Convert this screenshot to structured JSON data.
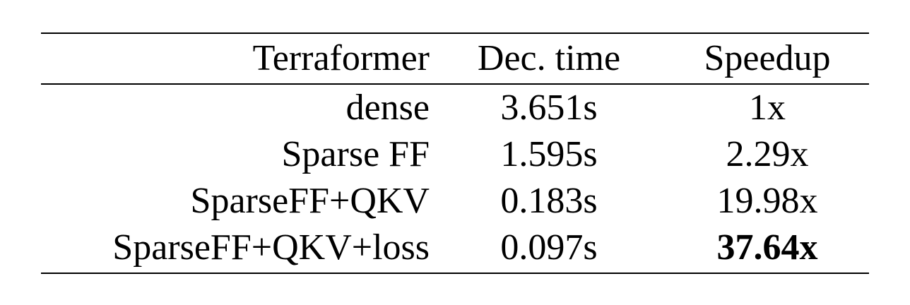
{
  "table": {
    "headers": [
      "Terraformer",
      "Dec. time",
      "Speedup"
    ],
    "rows": [
      {
        "model": "dense",
        "time": "3.651s",
        "speedup": "1x",
        "bold": false
      },
      {
        "model": "Sparse FF",
        "time": "1.595s",
        "speedup": "2.29x",
        "bold": false
      },
      {
        "model": "SparseFF+QKV",
        "time": "0.183s",
        "speedup": "19.98x",
        "bold": false
      },
      {
        "model": "SparseFF+QKV+loss",
        "time": "0.097s",
        "speedup": "37.64x",
        "bold": true
      }
    ]
  }
}
